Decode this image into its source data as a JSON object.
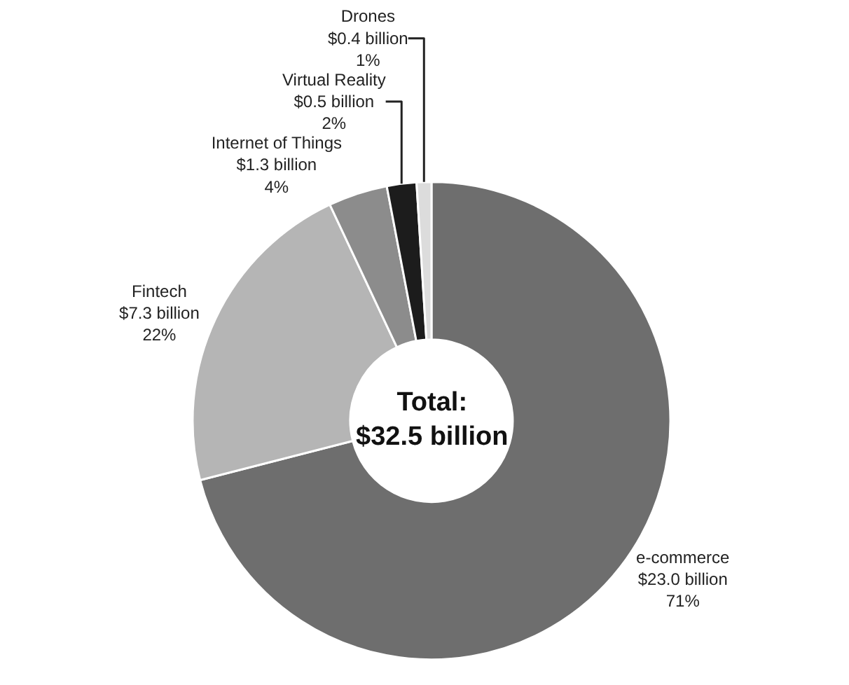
{
  "chart_data": {
    "type": "donut",
    "categories": [
      "e-commerce",
      "Fintech",
      "Internet of Things",
      "Virtual Reality",
      "Drones"
    ],
    "values": [
      71,
      22,
      4,
      2,
      1
    ],
    "value_labels": [
      "$23.0 billion\n71%",
      "$7.3 billion\n22%",
      "$1.3 billion\n4%",
      "$0.5 billion\n2%",
      "$0.4 billion\n1%"
    ],
    "colors": [
      "#6e6e6e",
      "#b5b5b5",
      "#8c8c8c",
      "#1c1c1c",
      "#dcdcdc"
    ],
    "annotations": [
      "Total:\n$32.5 billion"
    ],
    "legend": false
  }
}
